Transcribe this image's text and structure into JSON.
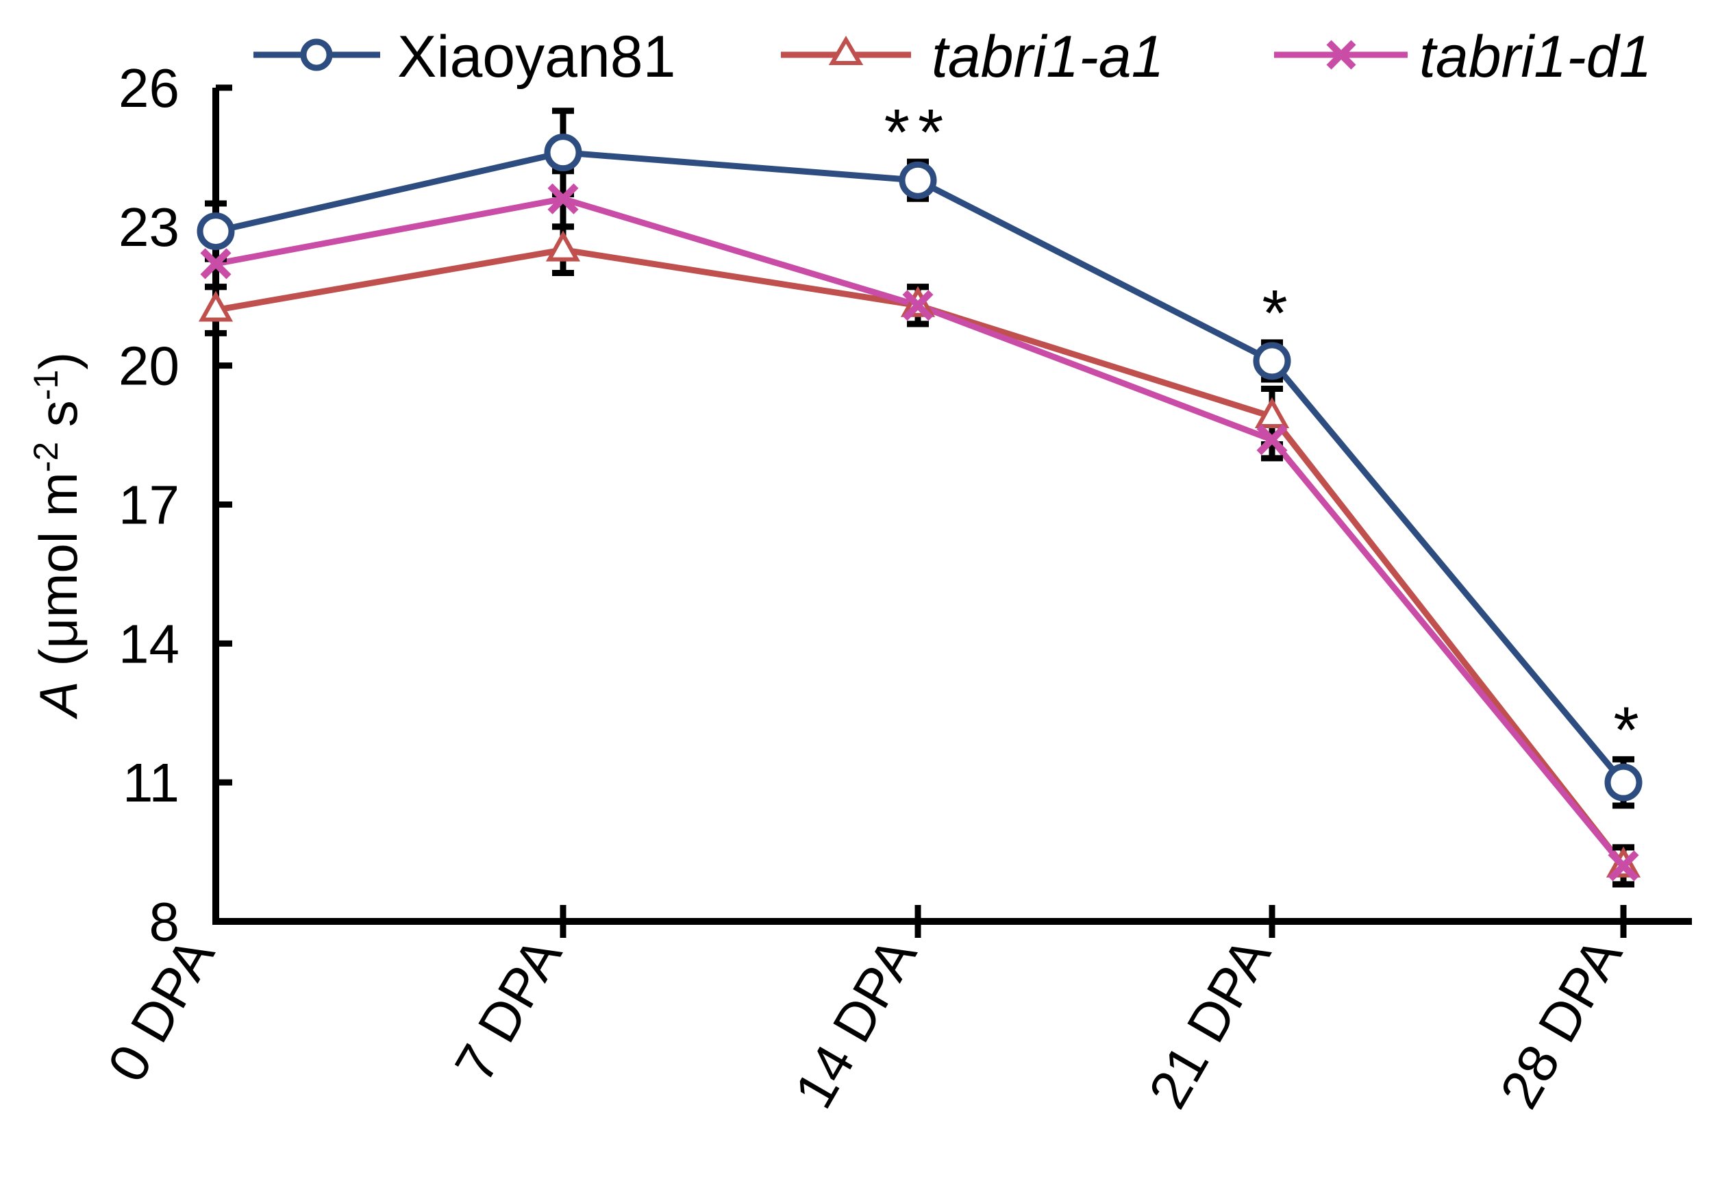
{
  "chart_data": {
    "type": "line",
    "title": "",
    "xlabel": "",
    "ylabel": {
      "symbol": "A",
      "unit_prefix": " (μmol m",
      "unit_exp1": "-2",
      "unit_mid": " s",
      "unit_exp2": "-1",
      "unit_suffix": ")"
    },
    "categories": [
      "0 DPA",
      "7 DPA",
      "14 DPA",
      "21 DPA",
      "28 DPA"
    ],
    "ylim": [
      8,
      26
    ],
    "yticks": [
      8,
      11,
      14,
      17,
      20,
      23,
      26
    ],
    "legend_position": "top",
    "series": [
      {
        "name": "Xiaoyan81",
        "italic": false,
        "color": "#2d4d80",
        "marker": "circle",
        "values": [
          22.9,
          24.6,
          24.0,
          20.1,
          11.0
        ],
        "errors": [
          0.6,
          0.9,
          0.4,
          0.4,
          0.5
        ]
      },
      {
        "name": "tabri1-a1",
        "italic": true,
        "color": "#c0504d",
        "marker": "triangle",
        "values": [
          21.2,
          22.5,
          21.3,
          18.9,
          9.2
        ],
        "errors": [
          0.5,
          0.5,
          0.4,
          0.6,
          0.4
        ]
      },
      {
        "name": "tabri1-d1",
        "italic": true,
        "color": "#c94ca6",
        "marker": "x",
        "values": [
          22.2,
          23.6,
          21.3,
          18.4,
          9.2
        ],
        "errors": [
          0.5,
          0.6,
          0.4,
          0.4,
          0.4
        ]
      }
    ],
    "significance": [
      {
        "category_index": 2,
        "label": "**"
      },
      {
        "category_index": 3,
        "label": "*"
      },
      {
        "category_index": 4,
        "label": "*"
      }
    ]
  }
}
